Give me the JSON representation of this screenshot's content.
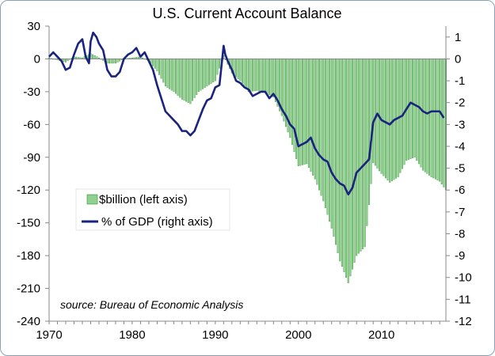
{
  "chart_data": {
    "type": "bar+line",
    "title": "U.S. Current Account Balance",
    "source": "source: Bureau of Economic Analysis",
    "x_range": [
      1970,
      2017.75
    ],
    "x_ticks": [
      1970,
      1980,
      1990,
      2000,
      2010
    ],
    "y_left": {
      "min": -240,
      "max": 30,
      "ticks": [
        30,
        0,
        -30,
        -60,
        -90,
        -120,
        -150,
        -180,
        -210,
        -240
      ]
    },
    "y_right": {
      "min": -12,
      "max": 1.5,
      "ticks": [
        1,
        0,
        -1,
        -2,
        -3,
        -4,
        -5,
        -6,
        -7,
        -8,
        -9,
        -10,
        -11,
        -12
      ]
    },
    "bar_color": "#8fd18f",
    "bar_edge": "#2f8f2f",
    "line_color": "#1a237e",
    "series": [
      {
        "name": "$billion (left axis)",
        "kind": "bar",
        "axis": "left",
        "anchors": [
          [
            1970,
            1
          ],
          [
            1971,
            -1
          ],
          [
            1972,
            -3
          ],
          [
            1973,
            2
          ],
          [
            1974,
            1
          ],
          [
            1975,
            5
          ],
          [
            1976,
            1
          ],
          [
            1977,
            -4
          ],
          [
            1978,
            -4
          ],
          [
            1979,
            0
          ],
          [
            1980,
            1
          ],
          [
            1981,
            2
          ],
          [
            1982,
            -2
          ],
          [
            1983,
            -11
          ],
          [
            1984,
            -25
          ],
          [
            1985,
            -30
          ],
          [
            1986,
            -37
          ],
          [
            1987,
            -41
          ],
          [
            1988,
            -30
          ],
          [
            1989,
            -25
          ],
          [
            1990,
            -20
          ],
          [
            1991,
            3
          ],
          [
            1991.5,
            -5
          ],
          [
            1992,
            -13
          ],
          [
            1993,
            -20
          ],
          [
            1994,
            -30
          ],
          [
            1995,
            -29
          ],
          [
            1996,
            -31
          ],
          [
            1997,
            -35
          ],
          [
            1998,
            -52
          ],
          [
            1999,
            -72
          ],
          [
            2000,
            -98
          ],
          [
            2001,
            -96
          ],
          [
            2002,
            -110
          ],
          [
            2003,
            -130
          ],
          [
            2004,
            -155
          ],
          [
            2005,
            -185
          ],
          [
            2006,
            -205
          ],
          [
            2007,
            -180
          ],
          [
            2008,
            -172
          ],
          [
            2009,
            -95
          ],
          [
            2010,
            -105
          ],
          [
            2011,
            -113
          ],
          [
            2012,
            -108
          ],
          [
            2013,
            -93
          ],
          [
            2014,
            -90
          ],
          [
            2015,
            -102
          ],
          [
            2016,
            -108
          ],
          [
            2017,
            -112
          ],
          [
            2017.75,
            -120
          ]
        ]
      },
      {
        "name": "% of GDP (right axis)",
        "kind": "line",
        "axis": "right",
        "anchors": [
          [
            1970,
            0.1
          ],
          [
            1970.5,
            0.3
          ],
          [
            1971,
            0.1
          ],
          [
            1971.5,
            -0.1
          ],
          [
            1972,
            -0.5
          ],
          [
            1972.5,
            -0.4
          ],
          [
            1973,
            0.2
          ],
          [
            1973.5,
            0.7
          ],
          [
            1974,
            0.9
          ],
          [
            1974.4,
            0.1
          ],
          [
            1974.8,
            -0.2
          ],
          [
            1975,
            0.8
          ],
          [
            1975.3,
            1.2
          ],
          [
            1975.7,
            1.0
          ],
          [
            1976,
            0.7
          ],
          [
            1976.5,
            0.4
          ],
          [
            1977,
            -0.5
          ],
          [
            1977.5,
            -0.8
          ],
          [
            1978,
            -0.8
          ],
          [
            1978.5,
            -0.6
          ],
          [
            1979,
            0.0
          ],
          [
            1979.5,
            0.2
          ],
          [
            1980,
            0.3
          ],
          [
            1980.5,
            0.5
          ],
          [
            1981,
            0.1
          ],
          [
            1981.5,
            0.3
          ],
          [
            1982,
            -0.1
          ],
          [
            1982.5,
            -0.5
          ],
          [
            1983,
            -1.2
          ],
          [
            1983.5,
            -1.8
          ],
          [
            1984,
            -2.4
          ],
          [
            1984.5,
            -2.6
          ],
          [
            1985,
            -2.8
          ],
          [
            1985.5,
            -3.0
          ],
          [
            1986,
            -3.3
          ],
          [
            1986.5,
            -3.3
          ],
          [
            1987,
            -3.5
          ],
          [
            1987.5,
            -3.3
          ],
          [
            1988,
            -2.8
          ],
          [
            1988.5,
            -2.3
          ],
          [
            1989,
            -1.9
          ],
          [
            1989.5,
            -1.8
          ],
          [
            1990,
            -1.3
          ],
          [
            1990.5,
            -1.2
          ],
          [
            1991,
            0.6
          ],
          [
            1991.2,
            0.2
          ],
          [
            1991.5,
            -0.1
          ],
          [
            1992,
            -0.5
          ],
          [
            1992.5,
            -1.0
          ],
          [
            1993,
            -1.1
          ],
          [
            1993.5,
            -1.3
          ],
          [
            1994,
            -1.4
          ],
          [
            1994.5,
            -1.7
          ],
          [
            1995,
            -1.6
          ],
          [
            1995.5,
            -1.5
          ],
          [
            1996,
            -1.5
          ],
          [
            1996.5,
            -1.8
          ],
          [
            1997,
            -1.6
          ],
          [
            1997.5,
            -1.9
          ],
          [
            1998,
            -2.3
          ],
          [
            1998.5,
            -2.6
          ],
          [
            1999,
            -3.0
          ],
          [
            1999.5,
            -3.2
          ],
          [
            2000,
            -4.0
          ],
          [
            2000.5,
            -3.9
          ],
          [
            2001,
            -3.8
          ],
          [
            2001.5,
            -3.6
          ],
          [
            2002,
            -4.1
          ],
          [
            2002.5,
            -4.4
          ],
          [
            2003,
            -4.6
          ],
          [
            2003.5,
            -4.7
          ],
          [
            2004,
            -5.2
          ],
          [
            2004.5,
            -5.5
          ],
          [
            2005,
            -5.7
          ],
          [
            2005.5,
            -5.8
          ],
          [
            2006,
            -6.2
          ],
          [
            2006.5,
            -5.9
          ],
          [
            2007,
            -5.2
          ],
          [
            2007.5,
            -5.0
          ],
          [
            2008,
            -4.8
          ],
          [
            2008.5,
            -4.6
          ],
          [
            2009,
            -2.9
          ],
          [
            2009.5,
            -2.5
          ],
          [
            2010,
            -2.8
          ],
          [
            2010.5,
            -2.9
          ],
          [
            2011,
            -3.0
          ],
          [
            2011.5,
            -2.8
          ],
          [
            2012,
            -2.7
          ],
          [
            2012.5,
            -2.6
          ],
          [
            2013,
            -2.3
          ],
          [
            2013.5,
            -2.0
          ],
          [
            2014,
            -2.1
          ],
          [
            2014.5,
            -2.2
          ],
          [
            2015,
            -2.4
          ],
          [
            2015.5,
            -2.5
          ],
          [
            2016,
            -2.4
          ],
          [
            2016.5,
            -2.4
          ],
          [
            2017,
            -2.4
          ],
          [
            2017.5,
            -2.7
          ]
        ]
      }
    ],
    "legend": {
      "position": "left-middle",
      "entries": [
        "$billion (left axis)",
        "% of GDP (right axis)"
      ]
    }
  }
}
